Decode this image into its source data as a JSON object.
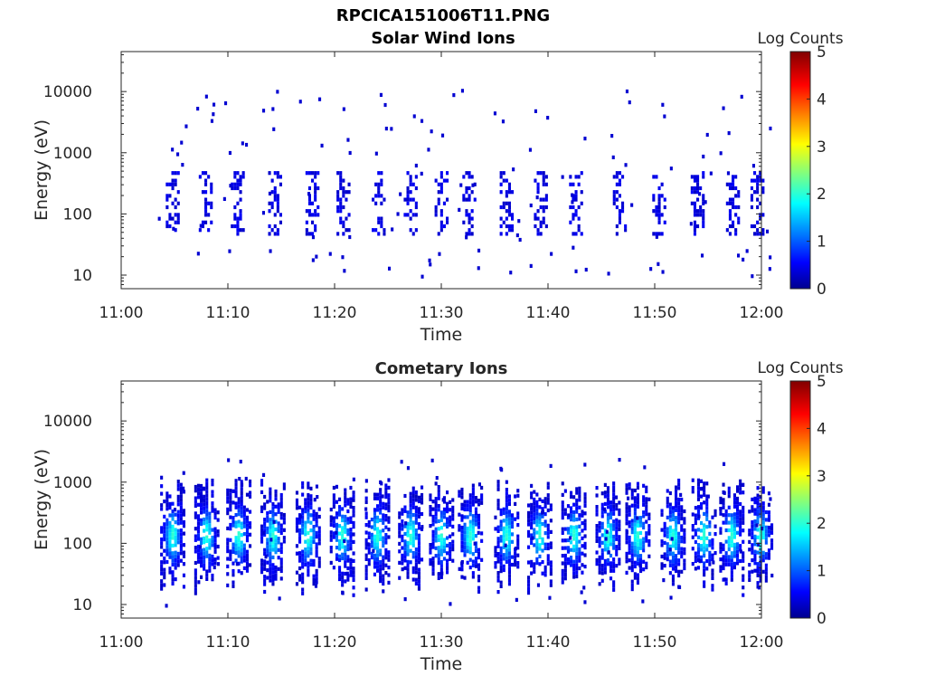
{
  "figure": {
    "title": "RPCICA151006T11.PNG"
  },
  "chart_data": [
    {
      "type": "heatmap",
      "title": "Solar Wind Ions",
      "xlabel": "Time",
      "ylabel": "Energy (eV)",
      "x_ticks": [
        "11:00",
        "11:10",
        "11:20",
        "11:30",
        "11:40",
        "11:50",
        "12:00"
      ],
      "x_range_minutes": [
        0,
        60
      ],
      "y_scale": "log",
      "y_ticks": [
        "10",
        "100",
        "1000",
        "10000"
      ],
      "y_range": [
        6,
        45000
      ],
      "colorbar": {
        "label": "Log Counts",
        "ticks": [
          "0",
          "1",
          "2",
          "3",
          "4",
          "5"
        ],
        "range": [
          0,
          5
        ],
        "colormap": "jet"
      },
      "bursts_minutes": [
        4.7,
        7.8,
        10.8,
        14.3,
        17.8,
        20.7,
        24.0,
        27.0,
        29.9,
        32.5,
        36.0,
        39.2,
        42.5,
        46.6,
        50.3,
        53.9,
        57.2,
        59.5
      ],
      "typical_energy_eV": [
        40,
        600
      ],
      "typical_log_counts": 0.2
    },
    {
      "type": "heatmap",
      "title": "Cometary Ions",
      "xlabel": "Time",
      "ylabel": "Energy (eV)",
      "x_ticks": [
        "11:00",
        "11:10",
        "11:20",
        "11:30",
        "11:40",
        "11:50",
        "12:00"
      ],
      "x_range_minutes": [
        0,
        60
      ],
      "y_scale": "log",
      "y_ticks": [
        "10",
        "100",
        "1000",
        "10000"
      ],
      "y_range": [
        6,
        45000
      ],
      "colorbar": {
        "label": "Log Counts",
        "ticks": [
          "0",
          "1",
          "2",
          "3",
          "4",
          "5"
        ],
        "range": [
          0,
          5
        ],
        "colormap": "jet"
      },
      "bursts_minutes": [
        4.7,
        7.9,
        10.9,
        14.1,
        17.4,
        20.6,
        23.9,
        27.0,
        29.9,
        32.6,
        36.0,
        39.1,
        42.3,
        45.5,
        48.3,
        51.6,
        54.5,
        57.1,
        59.8
      ],
      "typical_energy_eV": [
        15,
        1500
      ],
      "peak_log_counts": 1.9
    }
  ]
}
